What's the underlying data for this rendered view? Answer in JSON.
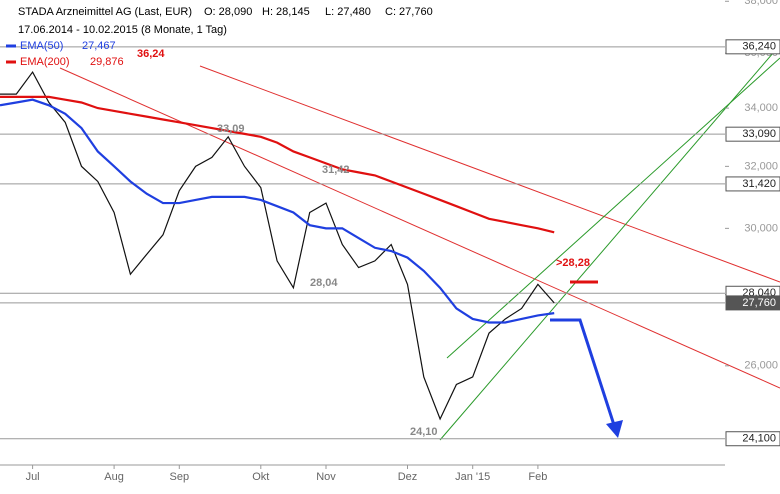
{
  "chart_data": {
    "type": "line",
    "title": "STADA Arzneimittel AG (Last, EUR)",
    "ohlc_labels": [
      "O: 28,090",
      "H: 28,145",
      "L: 27,480",
      "C: 27,760"
    ],
    "subtitle": "17.06.2014 - 10.02.2015 (8 Monate, 1 Tag)",
    "categories": [
      null,
      null,
      "Jul",
      null,
      null,
      null,
      null,
      "Aug",
      null,
      null,
      null,
      "Sep",
      null,
      null,
      null,
      null,
      "Okt",
      null,
      null,
      null,
      "Nov",
      null,
      null,
      null,
      null,
      "Dez",
      null,
      null,
      null,
      "Jan '15",
      null,
      null,
      null,
      "Feb",
      null
    ],
    "series": [
      {
        "name": "STADA",
        "color": "#111111",
        "values": [
          34.5,
          34.5,
          35.3,
          34.2,
          33.5,
          32.0,
          31.5,
          30.5,
          28.6,
          29.2,
          29.8,
          31.2,
          32.0,
          32.3,
          33.0,
          32.0,
          31.3,
          29.0,
          28.2,
          30.5,
          30.8,
          29.5,
          28.8,
          29.0,
          29.5,
          28.3,
          25.7,
          24.6,
          25.5,
          25.7,
          26.9,
          27.3,
          27.6,
          28.3,
          27.76
        ]
      },
      {
        "name": "EMA(50)",
        "legend_value": "27,467",
        "color": "#1f3fe0",
        "values": [
          34.1,
          34.2,
          34.3,
          34.1,
          33.8,
          33.3,
          32.5,
          32.0,
          31.5,
          31.1,
          30.8,
          30.8,
          30.9,
          31.0,
          31.0,
          31.0,
          30.9,
          30.7,
          30.5,
          30.1,
          30.0,
          30.0,
          29.7,
          29.4,
          29.3,
          29.1,
          28.7,
          28.2,
          27.6,
          27.3,
          27.2,
          27.2,
          27.3,
          27.4,
          27.467
        ]
      },
      {
        "name": "EMA(200)",
        "legend_value": "29,876",
        "color": "#e01010",
        "values": [
          34.4,
          34.4,
          34.4,
          34.4,
          34.3,
          34.2,
          34.0,
          33.9,
          33.8,
          33.7,
          33.6,
          33.5,
          33.4,
          33.3,
          33.2,
          33.1,
          33.0,
          32.8,
          32.5,
          32.3,
          32.1,
          31.9,
          31.8,
          31.7,
          31.5,
          31.3,
          31.1,
          30.9,
          30.7,
          30.5,
          30.3,
          30.2,
          30.1,
          30.0,
          29.876
        ]
      }
    ],
    "ylim": [
      23.45,
      38.05
    ],
    "log_scale": true,
    "yticks": [
      {
        "value": 26,
        "label": "26,000"
      },
      {
        "value": 28,
        "label": "28,000"
      },
      {
        "value": 30,
        "label": "30,000"
      },
      {
        "value": 32,
        "label": "32,000"
      },
      {
        "value": 34,
        "label": "34,000"
      },
      {
        "value": 36,
        "label": "36,000"
      },
      {
        "value": 38,
        "label": "38,000"
      }
    ],
    "levels": [
      {
        "value": 36.24,
        "label": "36,240"
      },
      {
        "value": 33.09,
        "label": "33,090"
      },
      {
        "value": 31.42,
        "label": "31,420"
      },
      {
        "value": 28.04,
        "label": "28,040"
      },
      {
        "value": 27.76,
        "label": "27,760"
      },
      {
        "value": 24.1,
        "label": "24,100"
      }
    ],
    "annotations": [
      "36,24",
      "33,09",
      "31,42",
      "28,04",
      "24,10",
      ">28,28"
    ]
  }
}
